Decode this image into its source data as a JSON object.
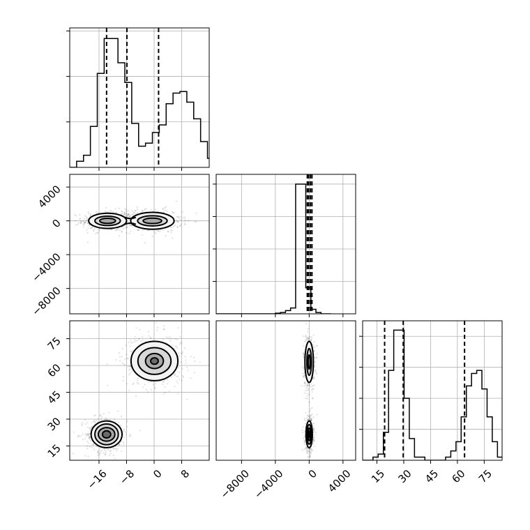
{
  "chart_data": {
    "type": "corner",
    "title": "",
    "parameters": [
      "",
      "",
      ""
    ],
    "grid": true,
    "panels": [
      {
        "row": 0,
        "col": 0,
        "type": "histogram",
        "xlim": [
          -24.5,
          16
        ],
        "bins": {
          "start": -22.5,
          "width": 2.0
        },
        "counts": [
          4,
          8,
          27,
          62,
          85,
          85,
          69,
          56,
          29,
          14,
          16,
          23,
          28,
          42,
          49,
          50,
          43,
          32,
          17,
          6,
          2,
          1,
          0
        ],
        "ylim": [
          0,
          92
        ],
        "quantile_lines": [
          -13.8,
          -7.9,
          1.3
        ],
        "xticks": [
          -16,
          -8,
          0,
          8
        ],
        "yticks": [],
        "ytick_marks": [
          30,
          60,
          90
        ]
      },
      {
        "row": 1,
        "col": 0,
        "type": "density",
        "xlim": [
          -24.5,
          16
        ],
        "ylim": [
          -11000,
          5500
        ],
        "xticks": [
          -16,
          -8,
          0,
          8
        ],
        "yticks": [
          4000,
          0,
          -4000,
          -8000
        ],
        "ytick_labels": [
          "4000",
          "0",
          "−4000",
          "−8000"
        ],
        "blobs": [
          {
            "cx": -13.5,
            "cy": 0,
            "rx": [
              5.5,
              3.7,
              2.3
            ],
            "ry": [
              900,
              550,
              300
            ]
          },
          {
            "cx": -0.5,
            "cy": 0,
            "rx": [
              6.3,
              4.3,
              2.7
            ],
            "ry": [
              1000,
              600,
              320
            ]
          }
        ],
        "neck": {
          "x1": -8.5,
          "x2": -5.3,
          "half_height": 420
        }
      },
      {
        "row": 1,
        "col": 1,
        "type": "histogram",
        "xlim": [
          -11000,
          5500
        ],
        "bins": {
          "start": -7000,
          "width": 600
        },
        "counts": [
          0,
          0,
          0,
          0,
          0,
          1,
          2,
          5,
          9,
          200,
          200,
          40,
          7,
          2,
          0,
          0
        ],
        "ylim": [
          0,
          215
        ],
        "quantile_lines": [
          -220,
          -60,
          150,
          330
        ],
        "xticks": [
          -8000,
          -4000,
          0,
          4000
        ],
        "yticks": [],
        "ytick_marks": [
          50,
          100,
          150,
          200
        ]
      },
      {
        "row": 2,
        "col": 0,
        "type": "density",
        "xlim": [
          -24.5,
          16
        ],
        "ylim": [
          7,
          85
        ],
        "xticks": [
          -16,
          -8,
          0,
          8
        ],
        "xtick_labels": [
          "−16",
          "−8",
          "0",
          "8"
        ],
        "yticks": [
          75,
          60,
          45,
          30,
          15
        ],
        "blobs": [
          {
            "cx": -13.8,
            "cy": 21.5,
            "rx": [
              4.5,
              3.4,
              2.4,
              1.2
            ],
            "ry": [
              7.5,
              5.8,
              3.8,
              2.0
            ]
          },
          {
            "cx": 0.1,
            "cy": 62.5,
            "rx": [
              6.8,
              4.8,
              2.6,
              1.1
            ],
            "ry": [
              11,
              7.5,
              4.2,
              1.8
            ]
          }
        ]
      },
      {
        "row": 2,
        "col": 1,
        "type": "density",
        "xlim": [
          -11000,
          5500
        ],
        "ylim": [
          7,
          85
        ],
        "xticks": [
          -8000,
          -4000,
          0,
          4000
        ],
        "xtick_labels": [
          "−8000",
          "−4000",
          "0",
          "4000"
        ],
        "yticks": [],
        "blobs": [
          {
            "cx": 0,
            "cy": 62,
            "rx": [
              500,
              270,
              120
            ],
            "ry": [
              11.5,
              7.5,
              4
            ]
          },
          {
            "cx": 0,
            "cy": 21.5,
            "rx": [
              380,
              270,
              160,
              70
            ],
            "ry": [
              7.5,
              5.5,
              3.5,
              1.8
            ]
          }
        ]
      },
      {
        "row": 2,
        "col": 2,
        "type": "histogram",
        "xlim": [
          7,
          85
        ],
        "bins": {
          "start": 7.0,
          "width": 2.9
        },
        "counts": [
          0,
          0,
          1,
          2,
          9,
          29,
          42,
          42,
          20,
          7,
          1,
          1,
          0,
          0,
          0,
          0,
          1,
          3,
          6,
          14,
          24,
          28,
          29,
          23,
          14,
          6,
          1,
          1
        ],
        "ylim": [
          0,
          45
        ],
        "quantile_lines": [
          19.3,
          29.7,
          64.0
        ],
        "xticks": [
          15,
          30,
          45,
          60,
          75
        ],
        "xtick_labels": [
          "15",
          "30",
          "45",
          "60",
          "75"
        ],
        "yticks": [],
        "ytick_marks": [
          10,
          20,
          30,
          40
        ]
      }
    ]
  }
}
